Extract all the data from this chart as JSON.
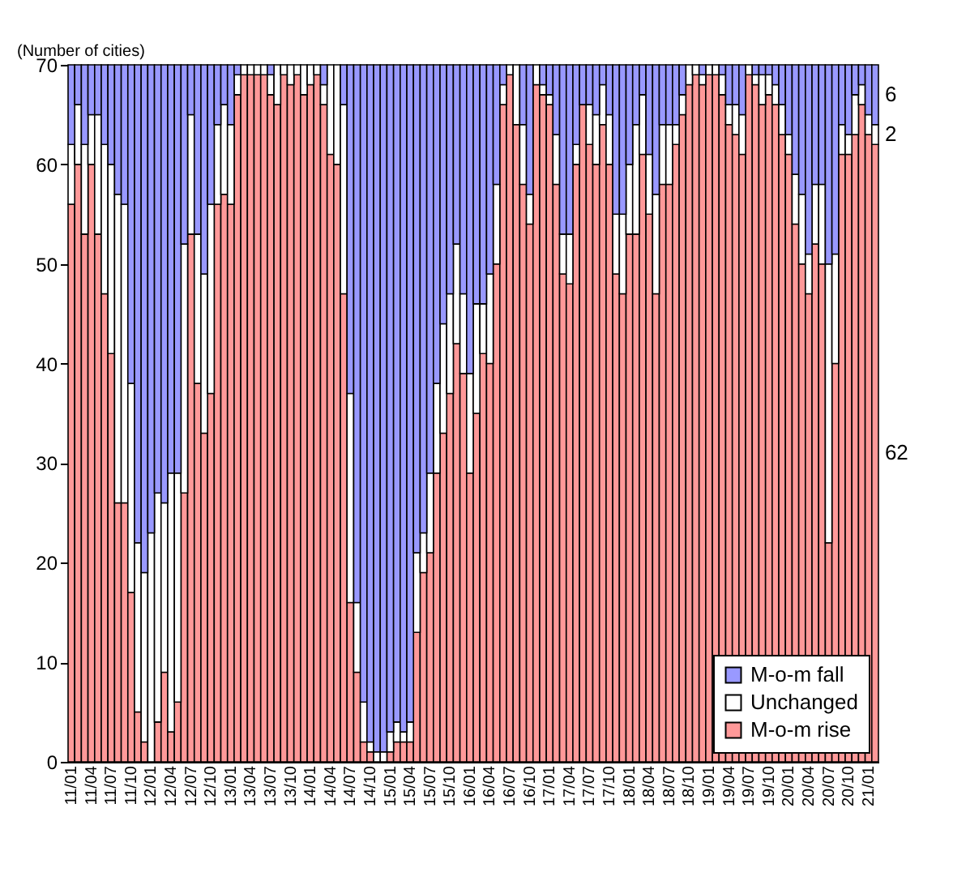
{
  "chart_data": {
    "type": "bar",
    "stacked": true,
    "ylabel": "(Number of cities)",
    "categories": [
      "11/01",
      null,
      null,
      "11/04",
      null,
      null,
      "11/07",
      null,
      null,
      "11/10",
      null,
      null,
      "12/01",
      null,
      null,
      "12/04",
      null,
      null,
      "12/07",
      null,
      null,
      "12/10",
      null,
      null,
      "13/01",
      null,
      null,
      "13/04",
      null,
      null,
      "13/07",
      null,
      null,
      "13/10",
      null,
      null,
      "14/01",
      null,
      null,
      "14/04",
      null,
      null,
      "14/07",
      null,
      null,
      "14/10",
      null,
      null,
      "15/01",
      null,
      null,
      "15/04",
      null,
      null,
      "15/07",
      null,
      null,
      "15/10",
      null,
      null,
      "16/01",
      null,
      null,
      "16/04",
      null,
      null,
      "16/07",
      null,
      null,
      "16/10",
      null,
      null,
      "17/01",
      null,
      null,
      "17/04",
      null,
      null,
      "17/07",
      null,
      null,
      "17/10",
      null,
      null,
      "18/01",
      null,
      null,
      "18/04",
      null,
      null,
      "18/07",
      null,
      null,
      "18/10",
      null,
      null,
      "19/01",
      null,
      null,
      "19/04",
      null,
      null,
      "19/07",
      null,
      null,
      "19/10",
      null,
      null,
      "20/01",
      null,
      null,
      "20/04",
      null,
      null,
      "20/07",
      null,
      null,
      "20/10",
      null,
      null,
      "21/01",
      null
    ],
    "series": [
      {
        "name": "M-o-m rise",
        "color": "#ff9999",
        "values": [
          56,
          60,
          53,
          60,
          53,
          47,
          41,
          26,
          26,
          17,
          5,
          2,
          0,
          4,
          9,
          3,
          6,
          27,
          53,
          38,
          33,
          37,
          56,
          57,
          56,
          67,
          69,
          69,
          69,
          69,
          67,
          66,
          69,
          68,
          69,
          67,
          68,
          69,
          66,
          61,
          60,
          47,
          16,
          9,
          2,
          1,
          0,
          0,
          1,
          2,
          2,
          2,
          13,
          19,
          21,
          29,
          33,
          37,
          42,
          39,
          29,
          35,
          41,
          40,
          50,
          66,
          69,
          64,
          58,
          54,
          68,
          67,
          66,
          58,
          49,
          48,
          60,
          66,
          62,
          60,
          64,
          60,
          49,
          47,
          53,
          53,
          61,
          55,
          47,
          58,
          58,
          62,
          65,
          68,
          69,
          68,
          69,
          69,
          67,
          64,
          63,
          61,
          69,
          68,
          66,
          67,
          66,
          63,
          61,
          54,
          50,
          47,
          52,
          50,
          22,
          40,
          61,
          61,
          63,
          66,
          63,
          62
        ],
        "value_labels": [
          null,
          null,
          null,
          null,
          null,
          null,
          null,
          null,
          null,
          null,
          null,
          null,
          null,
          null,
          null,
          null,
          null,
          null,
          null,
          null,
          null,
          null,
          null,
          null,
          null,
          null,
          null,
          null,
          null,
          null,
          null,
          null,
          null,
          null,
          null,
          null,
          null,
          null,
          null,
          null,
          null,
          null,
          null,
          null,
          null,
          null,
          null,
          null,
          null,
          null,
          null,
          null,
          null,
          null,
          null,
          null,
          null,
          null,
          null,
          null,
          null,
          null,
          null,
          null,
          null,
          null,
          null,
          null,
          null,
          null,
          null,
          null,
          null,
          null,
          null,
          null,
          null,
          null,
          null,
          null,
          null,
          null,
          null,
          null,
          null,
          null,
          null,
          null,
          null,
          null,
          null,
          null,
          null,
          null,
          null,
          null,
          null,
          null,
          null,
          null,
          null,
          null,
          null,
          null,
          null,
          null,
          null,
          null,
          null,
          null,
          null,
          null,
          null,
          null,
          null,
          null,
          null,
          null,
          null,
          null,
          null,
          "62"
        ]
      },
      {
        "name": "Unchanged",
        "color": "#ffffff",
        "values": [
          6,
          6,
          9,
          5,
          12,
          15,
          19,
          31,
          30,
          21,
          17,
          17,
          23,
          23,
          17,
          26,
          23,
          25,
          12,
          15,
          16,
          19,
          8,
          9,
          8,
          2,
          1,
          1,
          1,
          1,
          2,
          4,
          1,
          2,
          1,
          3,
          2,
          1,
          2,
          9,
          10,
          19,
          21,
          7,
          4,
          1,
          1,
          1,
          2,
          2,
          1,
          2,
          8,
          4,
          8,
          9,
          11,
          10,
          10,
          8,
          10,
          11,
          5,
          9,
          8,
          2,
          1,
          6,
          6,
          3,
          2,
          1,
          1,
          5,
          4,
          5,
          2,
          0,
          4,
          5,
          4,
          5,
          6,
          8,
          7,
          11,
          6,
          6,
          10,
          6,
          6,
          2,
          2,
          2,
          1,
          1,
          1,
          1,
          2,
          2,
          3,
          4,
          1,
          1,
          3,
          2,
          2,
          3,
          2,
          5,
          7,
          4,
          6,
          8,
          28,
          11,
          3,
          2,
          4,
          2,
          2,
          2
        ],
        "value_labels": [
          null,
          null,
          null,
          null,
          null,
          null,
          null,
          null,
          null,
          null,
          null,
          null,
          null,
          null,
          null,
          null,
          null,
          null,
          null,
          null,
          null,
          null,
          null,
          null,
          null,
          null,
          null,
          null,
          null,
          null,
          null,
          null,
          null,
          null,
          null,
          null,
          null,
          null,
          null,
          null,
          null,
          null,
          null,
          null,
          null,
          null,
          null,
          null,
          null,
          null,
          null,
          null,
          null,
          null,
          null,
          null,
          null,
          null,
          null,
          null,
          null,
          null,
          null,
          null,
          null,
          null,
          null,
          null,
          null,
          null,
          null,
          null,
          null,
          null,
          null,
          null,
          null,
          null,
          null,
          null,
          null,
          null,
          null,
          null,
          null,
          null,
          null,
          null,
          null,
          null,
          null,
          null,
          null,
          null,
          null,
          null,
          null,
          null,
          null,
          null,
          null,
          null,
          null,
          null,
          null,
          null,
          null,
          null,
          null,
          null,
          null,
          null,
          null,
          null,
          null,
          null,
          null,
          null,
          null,
          null,
          null,
          "2"
        ]
      },
      {
        "name": "M-o-m fall",
        "color": "#9999ff",
        "values": [
          8,
          4,
          8,
          5,
          5,
          8,
          10,
          13,
          14,
          32,
          48,
          51,
          47,
          43,
          44,
          41,
          41,
          18,
          5,
          17,
          21,
          14,
          6,
          4,
          6,
          1,
          0,
          0,
          0,
          0,
          1,
          0,
          0,
          0,
          0,
          0,
          0,
          0,
          2,
          0,
          0,
          4,
          33,
          54,
          64,
          68,
          69,
          69,
          67,
          66,
          67,
          66,
          49,
          47,
          41,
          32,
          26,
          23,
          18,
          23,
          31,
          24,
          24,
          21,
          12,
          2,
          0,
          0,
          6,
          13,
          0,
          2,
          3,
          7,
          17,
          17,
          8,
          4,
          4,
          5,
          2,
          5,
          15,
          15,
          10,
          6,
          3,
          9,
          13,
          6,
          6,
          6,
          3,
          0,
          0,
          1,
          0,
          0,
          1,
          4,
          4,
          5,
          0,
          1,
          1,
          1,
          2,
          4,
          7,
          11,
          13,
          19,
          12,
          12,
          20,
          19,
          6,
          7,
          3,
          2,
          5,
          6
        ],
        "value_labels": [
          null,
          null,
          null,
          null,
          null,
          null,
          null,
          null,
          null,
          null,
          null,
          null,
          null,
          null,
          null,
          null,
          null,
          null,
          null,
          null,
          null,
          null,
          null,
          null,
          null,
          null,
          null,
          null,
          null,
          null,
          null,
          null,
          null,
          null,
          null,
          null,
          null,
          null,
          null,
          null,
          null,
          null,
          null,
          null,
          null,
          null,
          null,
          null,
          null,
          null,
          null,
          null,
          null,
          null,
          null,
          null,
          null,
          null,
          null,
          null,
          null,
          null,
          null,
          null,
          null,
          null,
          null,
          null,
          null,
          null,
          null,
          null,
          null,
          null,
          null,
          null,
          null,
          null,
          null,
          null,
          null,
          null,
          null,
          null,
          null,
          null,
          null,
          null,
          null,
          null,
          null,
          null,
          null,
          null,
          null,
          null,
          null,
          null,
          null,
          null,
          null,
          null,
          null,
          null,
          null,
          null,
          null,
          null,
          null,
          null,
          null,
          null,
          null,
          null,
          null,
          null,
          null,
          null,
          null,
          null,
          null,
          "6"
        ]
      }
    ],
    "ylim": [
      0,
      70
    ],
    "yticks": [
      0,
      10,
      20,
      30,
      40,
      50,
      60,
      70
    ],
    "legend": "bottom right"
  }
}
